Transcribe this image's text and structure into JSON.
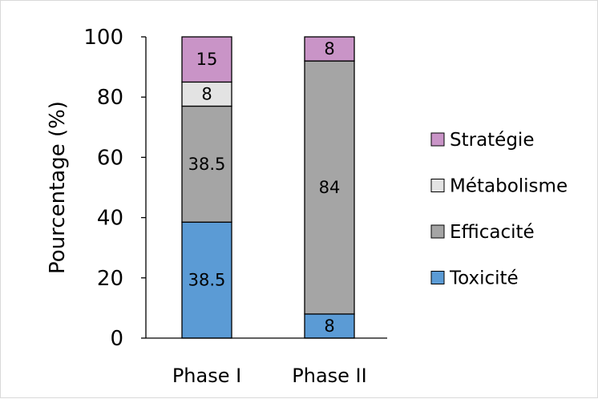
{
  "chart_data": {
    "type": "bar",
    "stacked": true,
    "categories": [
      "Phase I",
      "Phase II"
    ],
    "series": [
      {
        "name": "Toxicité",
        "values": [
          38.5,
          8
        ],
        "labels": [
          "38.5",
          "8"
        ],
        "color": "#5b9bd5"
      },
      {
        "name": "Efficacité",
        "values": [
          38.5,
          84
        ],
        "labels": [
          "38.5",
          "84"
        ],
        "color": "#a5a5a5"
      },
      {
        "name": "Métabolisme",
        "values": [
          8,
          0
        ],
        "labels": [
          "8",
          ""
        ],
        "color": "#e3e3e3"
      },
      {
        "name": "Stratégie",
        "values": [
          15,
          8
        ],
        "labels": [
          "15",
          "8"
        ],
        "color": "#c994c7"
      }
    ],
    "legend_order": [
      "Stratégie",
      "Métabolisme",
      "Efficacité",
      "Toxicité"
    ],
    "ylabel": "Pourcentage (%)",
    "xlabel": "",
    "ylim": [
      0,
      100
    ],
    "yticks": [
      0,
      20,
      40,
      60,
      80,
      100
    ],
    "grid": false,
    "legend_position": "right"
  }
}
